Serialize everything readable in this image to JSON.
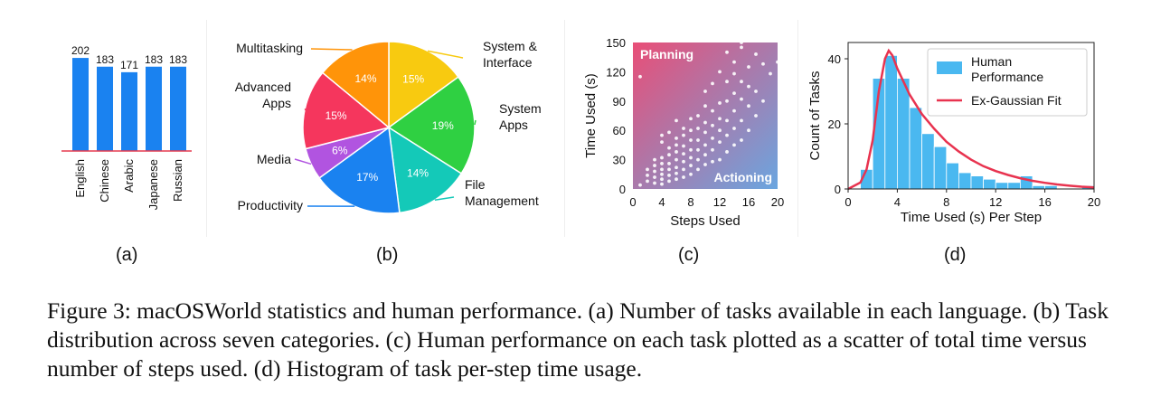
{
  "panels": {
    "a": {
      "label": "(a)"
    },
    "b": {
      "label": "(b)"
    },
    "c": {
      "label": "(c)"
    },
    "d": {
      "label": "(d)"
    }
  },
  "caption": "Figure 3: macOSWorld statistics and human performance. (a) Number of tasks available in each language. (b) Task distribution across seven categories. (c) Human performance on each task plotted as a scatter of total time versus number of steps used. (d) Histogram of task per-step time usage.",
  "chart_data": [
    {
      "id": "a",
      "type": "bar",
      "categories": [
        "English",
        "Chinese",
        "Arabic",
        "Japanese",
        "Russian"
      ],
      "values": [
        202,
        183,
        171,
        183,
        183
      ],
      "ylim": [
        0,
        210
      ],
      "color": "#1a82f0",
      "baseline_color": "#e53a4e"
    },
    {
      "id": "b",
      "type": "pie",
      "slices": [
        {
          "label": "System & Interface",
          "value": 15,
          "pct_label": "15%",
          "color": "#f8ca10"
        },
        {
          "label": "System Apps",
          "value": 19,
          "pct_label": "19%",
          "color": "#2fd042"
        },
        {
          "label": "File Management",
          "value": 14,
          "pct_label": "14%",
          "color": "#14c9b8"
        },
        {
          "label": "Productivity",
          "value": 17,
          "pct_label": "17%",
          "color": "#1a82f0"
        },
        {
          "label": "Media",
          "value": 6,
          "pct_label": "6%",
          "color": "#b154e0"
        },
        {
          "label": "Advanced Apps",
          "value": 15,
          "pct_label": "15%",
          "color": "#f5365d"
        },
        {
          "label": "Multitasking",
          "value": 14,
          "pct_label": "14%",
          "color": "#ff9409"
        }
      ]
    },
    {
      "id": "c",
      "type": "scatter",
      "xlabel": "Steps Used",
      "ylabel": "Time Used (s)",
      "xlim": [
        0,
        20
      ],
      "ylim": [
        0,
        150
      ],
      "xticks": [
        0,
        4,
        8,
        12,
        16,
        20
      ],
      "yticks": [
        0,
        30,
        60,
        90,
        120,
        150
      ],
      "annotations": [
        "Planning",
        "Actioning"
      ],
      "gradient_colors": [
        "#e94e77",
        "#6aa6e0"
      ],
      "point_color": "#ffffff",
      "points": [
        [
          1,
          4
        ],
        [
          1,
          115
        ],
        [
          2,
          8
        ],
        [
          2,
          14
        ],
        [
          2,
          20
        ],
        [
          3,
          6
        ],
        [
          3,
          12
        ],
        [
          3,
          18
        ],
        [
          3,
          24
        ],
        [
          3,
          30
        ],
        [
          4,
          5
        ],
        [
          4,
          10
        ],
        [
          4,
          15
        ],
        [
          4,
          20
        ],
        [
          4,
          26
        ],
        [
          4,
          32
        ],
        [
          4,
          48
        ],
        [
          4,
          55
        ],
        [
          5,
          8
        ],
        [
          5,
          14
        ],
        [
          5,
          20
        ],
        [
          5,
          26
        ],
        [
          5,
          35
        ],
        [
          5,
          42
        ],
        [
          5,
          58
        ],
        [
          6,
          10
        ],
        [
          6,
          16
        ],
        [
          6,
          22
        ],
        [
          6,
          30
        ],
        [
          6,
          38
        ],
        [
          6,
          45
        ],
        [
          6,
          52
        ],
        [
          6,
          70
        ],
        [
          7,
          12
        ],
        [
          7,
          20
        ],
        [
          7,
          28
        ],
        [
          7,
          36
        ],
        [
          7,
          44
        ],
        [
          7,
          55
        ],
        [
          7,
          62
        ],
        [
          8,
          15
        ],
        [
          8,
          24
        ],
        [
          8,
          32
        ],
        [
          8,
          40
        ],
        [
          8,
          50
        ],
        [
          8,
          60
        ],
        [
          8,
          72
        ],
        [
          9,
          20
        ],
        [
          9,
          30
        ],
        [
          9,
          40
        ],
        [
          9,
          50
        ],
        [
          9,
          62
        ],
        [
          9,
          75
        ],
        [
          10,
          25
        ],
        [
          10,
          35
        ],
        [
          10,
          45
        ],
        [
          10,
          58
        ],
        [
          10,
          68
        ],
        [
          10,
          85
        ],
        [
          10,
          100
        ],
        [
          11,
          28
        ],
        [
          11,
          40
        ],
        [
          11,
          52
        ],
        [
          11,
          65
        ],
        [
          11,
          80
        ],
        [
          11,
          108
        ],
        [
          12,
          30
        ],
        [
          12,
          48
        ],
        [
          12,
          60
        ],
        [
          12,
          72
        ],
        [
          12,
          88
        ],
        [
          12,
          120
        ],
        [
          13,
          38
        ],
        [
          13,
          55
        ],
        [
          13,
          70
        ],
        [
          13,
          90
        ],
        [
          13,
          110
        ],
        [
          13,
          140
        ],
        [
          14,
          45
        ],
        [
          14,
          62
        ],
        [
          14,
          80
        ],
        [
          14,
          98
        ],
        [
          14,
          118
        ],
        [
          14,
          130
        ],
        [
          15,
          50
        ],
        [
          15,
          70
        ],
        [
          15,
          92
        ],
        [
          15,
          110
        ],
        [
          15,
          145
        ],
        [
          15,
          150
        ],
        [
          16,
          60
        ],
        [
          16,
          85
        ],
        [
          16,
          105
        ],
        [
          16,
          125
        ],
        [
          17,
          75
        ],
        [
          17,
          100
        ],
        [
          17,
          138
        ],
        [
          18,
          90
        ],
        [
          18,
          128
        ],
        [
          19,
          118
        ],
        [
          20,
          130
        ]
      ]
    },
    {
      "id": "d",
      "type": "bar",
      "xlabel": "Time Used (s) Per Step",
      "ylabel": "Count of Tasks",
      "xlim": [
        0,
        20
      ],
      "ylim": [
        0,
        45
      ],
      "xticks": [
        0,
        4,
        8,
        12,
        16,
        20
      ],
      "yticks": [
        0,
        20,
        40
      ],
      "bin_width": 1,
      "bin_starts": [
        1,
        2,
        3,
        4,
        5,
        6,
        7,
        8,
        9,
        10,
        11,
        12,
        13,
        14,
        15,
        16,
        17,
        18,
        19
      ],
      "counts": [
        6,
        34,
        41,
        34,
        25,
        17,
        13,
        8,
        5,
        4,
        3,
        2,
        2,
        4,
        1,
        1,
        0,
        0,
        1
      ],
      "legend": [
        "Human Performance",
        "Ex-Gaussian Fit"
      ],
      "legend_position": "top-right",
      "hist_color": "#4ab8f0",
      "fit_color": "#e8334f",
      "fit_curve": [
        [
          0,
          0
        ],
        [
          1,
          2
        ],
        [
          1.5,
          6
        ],
        [
          2,
          15
        ],
        [
          2.5,
          30
        ],
        [
          3,
          40
        ],
        [
          3.3,
          42.5
        ],
        [
          3.6,
          41
        ],
        [
          4,
          37
        ],
        [
          4.5,
          33
        ],
        [
          5,
          29
        ],
        [
          6,
          23
        ],
        [
          7,
          18.5
        ],
        [
          8,
          14.5
        ],
        [
          9,
          11.5
        ],
        [
          10,
          9
        ],
        [
          11,
          7
        ],
        [
          12,
          5.5
        ],
        [
          13,
          4.3
        ],
        [
          14,
          3.3
        ],
        [
          15,
          2.5
        ],
        [
          16,
          1.9
        ],
        [
          17,
          1.4
        ],
        [
          18,
          1
        ],
        [
          19,
          0.7
        ],
        [
          20,
          0.5
        ]
      ]
    }
  ]
}
